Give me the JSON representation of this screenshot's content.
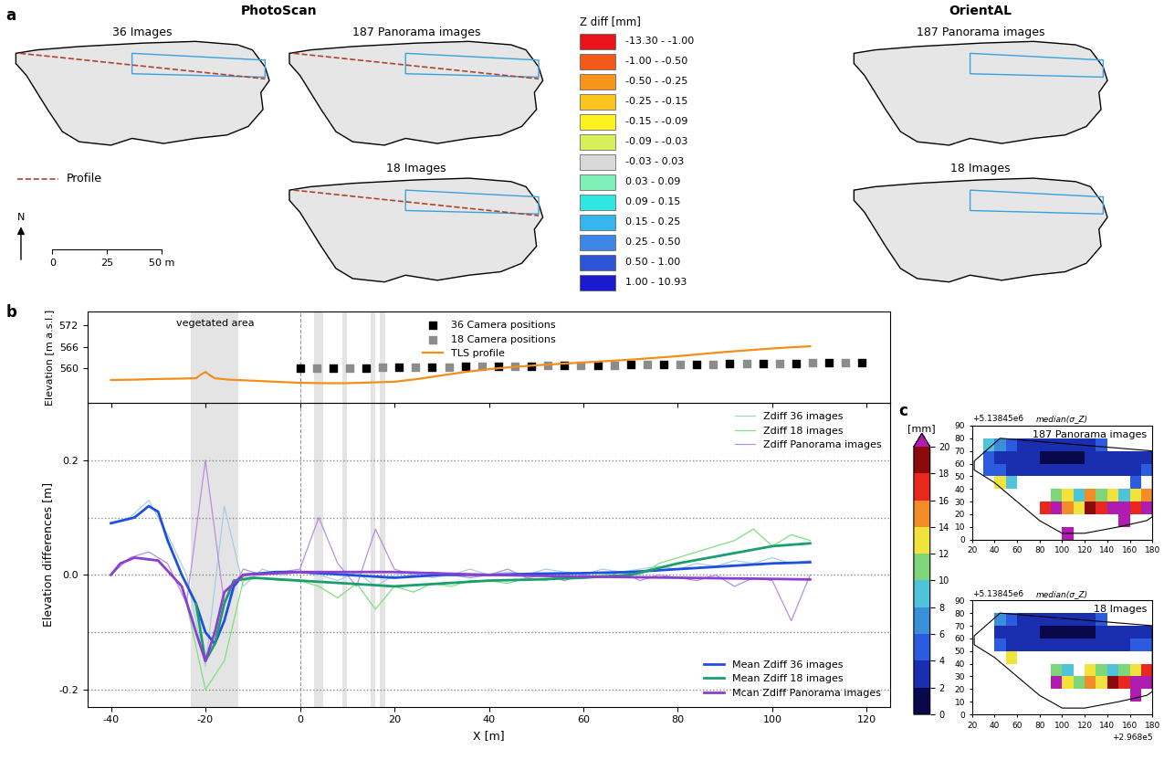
{
  "figure": {
    "panel_letters": [
      "a",
      "b",
      "c"
    ],
    "panel_a": {
      "methods": [
        "PhotoScan",
        "OrientAL"
      ],
      "maps": [
        {
          "method": "PhotoScan",
          "title": "36 Images",
          "shows_profile": true
        },
        {
          "method": "PhotoScan",
          "title": "187 Panorama images",
          "shows_profile": true
        },
        {
          "method": "PhotoScan",
          "title": "18 Images",
          "shows_profile": true
        },
        {
          "method": "OrientAL",
          "title": "187 Panorama images",
          "shows_profile": false
        },
        {
          "method": "OrientAL",
          "title": "18 Images",
          "shows_profile": false
        }
      ],
      "zdiff_legend": {
        "title": "Z diff [mm]",
        "classes": [
          {
            "label": "-13.30 - -1.00",
            "color": "#e8141c"
          },
          {
            "label": "-1.00 - -0.50",
            "color": "#f25a1c"
          },
          {
            "label": "-0.50 - -0.25",
            "color": "#f7941d"
          },
          {
            "label": "-0.25 - -0.15",
            "color": "#fbc41e"
          },
          {
            "label": "-0.15 - -0.09",
            "color": "#fdf21f"
          },
          {
            "label": "-0.09 - -0.03",
            "color": "#d6ef5a"
          },
          {
            "label": "-0.03 - 0.03",
            "color": "#d9d9d9"
          },
          {
            "label": "0.03 - 0.09",
            "color": "#7ff0b8"
          },
          {
            "label": "0.09 - 0.15",
            "color": "#2fe6e0"
          },
          {
            "label": "0.15 - 0.25",
            "color": "#35b7ee"
          },
          {
            "label": "0.25 - 0.50",
            "color": "#3d86e8"
          },
          {
            "label": "0.50 - 1.00",
            "color": "#2e54d6"
          },
          {
            "label": "1.00 - 10.93",
            "color": "#1a1ad0"
          }
        ]
      },
      "profile_label": "Profile",
      "north_label": "N",
      "scale_bar": {
        "range": [
          0,
          50
        ],
        "ticks": [
          0,
          25,
          {
            "value": 50,
            "label": "50 m"
          }
        ]
      }
    },
    "panel_b": {
      "shaded_x": [
        [
          -23,
          -13
        ],
        [
          3,
          5
        ],
        [
          9,
          10
        ],
        [
          15,
          16
        ],
        [
          17,
          18
        ]
      ],
      "dashed_x": 0
    },
    "panel_c_colorbar": {
      "label": "[mm]",
      "range": [
        0,
        20
      ],
      "ticks": [
        0,
        2,
        4,
        6,
        8,
        10,
        12,
        14,
        16,
        18,
        20
      ],
      "colors": [
        "#08084a",
        "#1a2fb0",
        "#2c5be0",
        "#3b8fd9",
        "#4fc3d9",
        "#7fd67a",
        "#f2e33c",
        "#f28c28",
        "#e8281e",
        "#8b0a0a"
      ],
      "over_color": "#b01bb0"
    }
  },
  "chart_data": [
    {
      "type": "line",
      "ylabel": "Elevation [m a.s.l.]",
      "ylim": [
        550,
        576
      ],
      "yticks": [
        560,
        566,
        572
      ],
      "tick_labels": "y",
      "legend": "upper center",
      "annotations": [
        {
          "text": "vegetated area",
          "x": -18,
          "y": 574
        }
      ],
      "series": [
        {
          "name": "36 Camera positions",
          "type": "scatter",
          "marker": "square",
          "color": "#000000",
          "x": [
            0,
            7,
            14,
            21,
            28,
            35,
            42,
            49,
            56,
            63,
            70,
            77,
            84,
            91,
            98,
            105,
            112,
            119
          ],
          "values": [
            560.0,
            560.0,
            560.0,
            560.1,
            560.2,
            560.3,
            560.4,
            560.5,
            560.6,
            560.7,
            560.8,
            560.9,
            561.0,
            561.1,
            561.2,
            561.3,
            561.4,
            561.5
          ]
        },
        {
          "name": "18 Camera positions",
          "type": "scatter",
          "marker": "square",
          "color": "#8c8c8c",
          "x": [
            3.5,
            10.5,
            17.5,
            24.5,
            31.5,
            38.5,
            45.5,
            52.5,
            59.5,
            66.5,
            73.5,
            80.5,
            87.5,
            94.5,
            101.5,
            108.5,
            115.5
          ],
          "values": [
            560.0,
            560.0,
            560.05,
            560.15,
            560.25,
            560.35,
            560.45,
            560.55,
            560.65,
            560.75,
            560.85,
            560.95,
            561.05,
            561.15,
            561.25,
            561.35,
            561.45
          ]
        },
        {
          "name": "TLS profile",
          "type": "line",
          "color": "#f28e1c",
          "x": [
            -40,
            -35,
            -30,
            -25,
            -22,
            -21,
            -20,
            -19,
            -18,
            -15,
            -10,
            -5,
            0,
            5,
            10,
            15,
            20,
            25,
            30,
            35,
            40,
            45,
            50,
            55,
            60,
            65,
            70,
            75,
            80,
            85,
            90,
            95,
            100,
            105,
            108
          ],
          "values": [
            556.5,
            556.6,
            556.8,
            556.9,
            557.0,
            558.0,
            558.8,
            557.8,
            557.0,
            556.6,
            556.3,
            556.0,
            555.7,
            555.6,
            555.6,
            555.8,
            556.0,
            556.8,
            557.8,
            558.8,
            559.6,
            560.2,
            560.7,
            561.1,
            561.5,
            561.9,
            562.3,
            562.8,
            563.3,
            563.9,
            564.5,
            565.0,
            565.5,
            565.9,
            566.1
          ]
        }
      ]
    },
    {
      "type": "line",
      "xlabel": "X [m]",
      "ylabel": "Elevation differences [m]",
      "xlim": [
        -45,
        125
      ],
      "xticks": [
        -40,
        -20,
        0,
        20,
        40,
        60,
        80,
        100,
        120
      ],
      "ylim": [
        -0.23,
        0.3
      ],
      "yticks": [
        -0.2,
        0.0,
        0.2
      ],
      "hlines": [
        -0.2,
        -0.1,
        0.0,
        0.1,
        0.2
      ],
      "legend": "upper right",
      "x": [
        -40,
        -36,
        -32,
        -28,
        -24,
        -20,
        -16,
        -12,
        -8,
        -4,
        0,
        4,
        8,
        12,
        16,
        20,
        24,
        28,
        32,
        36,
        40,
        44,
        48,
        52,
        56,
        60,
        64,
        68,
        72,
        76,
        80,
        84,
        88,
        92,
        96,
        100,
        104,
        108
      ],
      "series": [
        {
          "name": "Zdiff 36 images",
          "color": "#a6cee3",
          "values": [
            0.09,
            0.1,
            0.13,
            0.07,
            0.0,
            -0.16,
            0.12,
            -0.02,
            0.01,
            0.0,
            0.005,
            0.0,
            -0.01,
            0.005,
            -0.02,
            0.0,
            0.005,
            -0.005,
            0.0,
            0.01,
            0.0,
            0.005,
            0.0,
            0.01,
            0.005,
            0.0,
            0.01,
            0.005,
            0.01,
            0.015,
            0.01,
            0.02,
            0.015,
            0.025,
            0.02,
            0.03,
            0.02,
            0.025
          ]
        },
        {
          "name": "Zdiff 18 images",
          "color": "#7fe07f",
          "values": [
            null,
            null,
            null,
            null,
            -0.05,
            -0.2,
            -0.15,
            -0.01,
            -0.005,
            -0.01,
            -0.01,
            -0.02,
            -0.04,
            -0.015,
            -0.06,
            -0.02,
            -0.03,
            -0.015,
            -0.02,
            -0.01,
            -0.01,
            -0.015,
            -0.005,
            -0.01,
            0.0,
            -0.005,
            0.0,
            0.005,
            0.0,
            0.02,
            0.03,
            0.04,
            0.05,
            0.06,
            0.08,
            0.05,
            0.07,
            0.06
          ]
        },
        {
          "name": "Zdiff Panorama images",
          "color": "#b48fe0",
          "values": [
            0.0,
            0.03,
            0.04,
            0.02,
            -0.05,
            0.2,
            -0.05,
            0.01,
            0.0,
            0.005,
            0.01,
            0.1,
            0.02,
            -0.02,
            0.08,
            0.01,
            0.0,
            0.005,
            0.0,
            -0.005,
            0.0,
            0.01,
            -0.005,
            0.0,
            -0.01,
            0.0,
            -0.005,
            0.005,
            -0.01,
            0.0,
            -0.005,
            -0.01,
            0.0,
            -0.02,
            -0.005,
            -0.01,
            -0.08,
            0.0
          ]
        }
      ]
    },
    {
      "type": "line",
      "legend": "lower right",
      "series": [
        {
          "name": "Mean Zdiff 36 images",
          "color": "#1f4fe0",
          "x": [
            -40,
            -35,
            -32,
            -30,
            -28,
            -25,
            -22,
            -20,
            -18,
            -16,
            -14,
            -12,
            -5,
            0,
            10,
            20,
            30,
            40,
            50,
            60,
            70,
            80,
            90,
            100,
            108
          ],
          "values": [
            0.09,
            0.1,
            0.12,
            0.11,
            0.06,
            0.0,
            -0.05,
            -0.1,
            -0.12,
            -0.08,
            -0.02,
            0.0,
            0.005,
            0.005,
            0.0,
            -0.005,
            0.0,
            0.0,
            0.002,
            0.003,
            0.005,
            0.01,
            0.015,
            0.02,
            0.022
          ]
        },
        {
          "name": "Mean Zdiff 18 images",
          "color": "#1a9e6e",
          "x": [
            -22,
            -20,
            -18,
            -16,
            -14,
            -10,
            0,
            10,
            20,
            30,
            40,
            50,
            60,
            70,
            80,
            90,
            100,
            108
          ],
          "values": [
            -0.05,
            -0.15,
            -0.12,
            -0.05,
            -0.01,
            -0.005,
            -0.01,
            -0.015,
            -0.02,
            -0.015,
            -0.01,
            -0.008,
            -0.005,
            0.0,
            0.02,
            0.035,
            0.05,
            0.055
          ]
        },
        {
          "name": "Mcan Zdiff Panorama images",
          "color": "#8a3fd0",
          "x": [
            -40,
            -38,
            -35,
            -30,
            -25,
            -22,
            -20,
            -18,
            -16,
            -12,
            0,
            20,
            40,
            60,
            80,
            100,
            108
          ],
          "values": [
            0.0,
            0.02,
            0.03,
            0.025,
            -0.02,
            -0.1,
            -0.15,
            -0.1,
            -0.03,
            0.0,
            0.005,
            0.005,
            0.0,
            -0.003,
            -0.005,
            -0.007,
            -0.008
          ]
        }
      ]
    },
    {
      "type": "heatmap",
      "title": "187 Panorama images",
      "subtitle": "median(σ_Z)",
      "y_offset_label": "+5.13845e6",
      "xlim": [
        20,
        180
      ],
      "ylim": [
        0,
        90
      ],
      "xticks": [
        20,
        40,
        60,
        80,
        100,
        120,
        140,
        160,
        180
      ],
      "yticks": [
        0,
        10,
        20,
        30,
        40,
        50,
        60,
        70,
        80,
        90
      ],
      "x_edges": [
        20,
        30,
        40,
        50,
        60,
        70,
        80,
        90,
        100,
        110,
        120,
        130,
        140,
        150,
        160,
        170,
        180
      ],
      "y_edges": [
        0,
        10,
        20,
        30,
        40,
        50,
        60,
        70,
        80,
        90
      ],
      "cells": [
        [
          null,
          null,
          null,
          null,
          null,
          null,
          null,
          null,
          22,
          null,
          null,
          null,
          null,
          null,
          null,
          null
        ],
        [
          null,
          null,
          null,
          null,
          null,
          null,
          null,
          null,
          null,
          null,
          null,
          null,
          null,
          22,
          null,
          null
        ],
        [
          null,
          null,
          null,
          null,
          null,
          null,
          16,
          22,
          14,
          12,
          18,
          16,
          22,
          20,
          16,
          22
        ],
        [
          null,
          null,
          null,
          null,
          null,
          null,
          null,
          10,
          12,
          8,
          14,
          10,
          12,
          8,
          12,
          14
        ],
        [
          null,
          null,
          12,
          8,
          null,
          null,
          null,
          null,
          null,
          null,
          null,
          null,
          null,
          null,
          4,
          null
        ],
        [
          null,
          4,
          4,
          3,
          3,
          3,
          3,
          3,
          2,
          2,
          2,
          3,
          3,
          3,
          3,
          4
        ],
        [
          null,
          4,
          3,
          2,
          2,
          2,
          1,
          1,
          1,
          1,
          2,
          2,
          2,
          2,
          3,
          3
        ],
        [
          null,
          8,
          6,
          4,
          3,
          3,
          2,
          2,
          2,
          3,
          3,
          4,
          null,
          null,
          null,
          null
        ],
        [
          null,
          null,
          null,
          null,
          null,
          null,
          null,
          null,
          null,
          null,
          null,
          null,
          null,
          null,
          null,
          null
        ]
      ]
    },
    {
      "type": "heatmap",
      "title": "18 Images",
      "subtitle": "median(σ_Z)",
      "y_offset_label": "+5.13845e6",
      "x_offset_label": "+2.968e5",
      "xlim": [
        20,
        180
      ],
      "ylim": [
        0,
        90
      ],
      "xticks": [
        20,
        40,
        60,
        80,
        100,
        120,
        140,
        160,
        180
      ],
      "yticks": [
        0,
        10,
        20,
        30,
        40,
        50,
        60,
        70,
        80,
        90
      ],
      "x_edges": [
        20,
        30,
        40,
        50,
        60,
        70,
        80,
        90,
        100,
        110,
        120,
        130,
        140,
        150,
        160,
        170,
        180
      ],
      "y_edges": [
        0,
        10,
        20,
        30,
        40,
        50,
        60,
        70,
        80,
        90
      ],
      "cells": [
        [
          null,
          null,
          null,
          null,
          null,
          null,
          null,
          null,
          null,
          null,
          null,
          null,
          null,
          null,
          null,
          null
        ],
        [
          null,
          null,
          null,
          null,
          null,
          null,
          null,
          null,
          null,
          null,
          null,
          null,
          null,
          null,
          22,
          null
        ],
        [
          null,
          null,
          null,
          null,
          null,
          null,
          null,
          22,
          12,
          10,
          14,
          12,
          18,
          16,
          20,
          22
        ],
        [
          null,
          null,
          null,
          null,
          null,
          null,
          null,
          10,
          8,
          null,
          12,
          10,
          8,
          10,
          12,
          16
        ],
        [
          null,
          null,
          null,
          12,
          null,
          null,
          null,
          null,
          null,
          null,
          null,
          null,
          null,
          null,
          null,
          null
        ],
        [
          null,
          null,
          4,
          3,
          3,
          3,
          3,
          3,
          3,
          2,
          2,
          3,
          3,
          3,
          4,
          4
        ],
        [
          null,
          null,
          3,
          2,
          2,
          2,
          1,
          1,
          1,
          1,
          1,
          2,
          2,
          2,
          3,
          3
        ],
        [
          null,
          null,
          6,
          4,
          3,
          3,
          2,
          2,
          2,
          3,
          3,
          4,
          null,
          null,
          null,
          null
        ],
        [
          null,
          null,
          null,
          null,
          null,
          null,
          null,
          null,
          null,
          null,
          null,
          null,
          null,
          null,
          null,
          null
        ]
      ]
    }
  ]
}
